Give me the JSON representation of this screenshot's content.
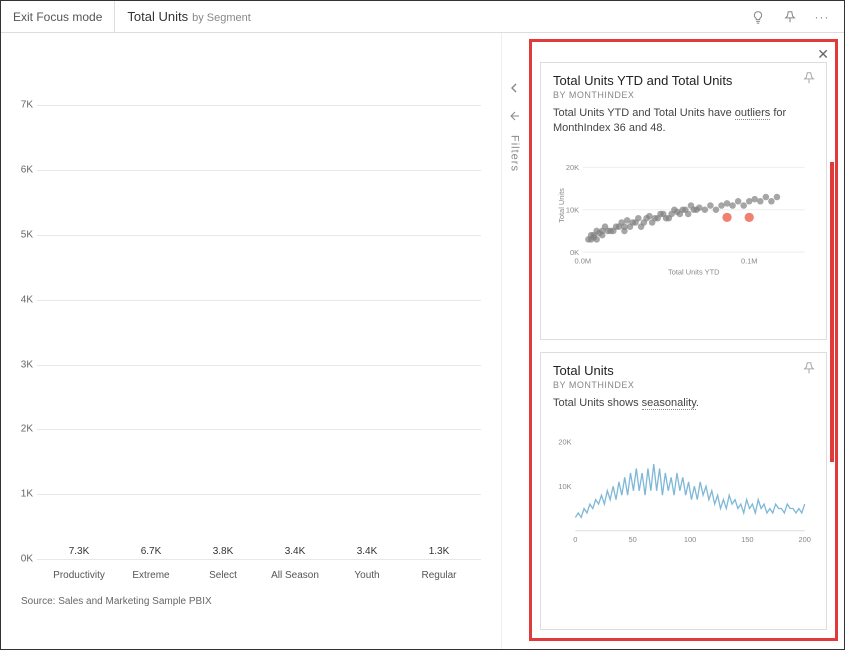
{
  "toolbar": {
    "exit_focus": "Exit Focus mode",
    "title_main": "Total Units",
    "title_sub": "by Segment"
  },
  "bar_chart": {
    "type": "bar",
    "ymax": 7500,
    "yticks": [
      0,
      1000,
      2000,
      3000,
      4000,
      5000,
      6000,
      7000
    ],
    "ytick_labels": [
      "0K",
      "1K",
      "2K",
      "3K",
      "4K",
      "5K",
      "6K",
      "7K"
    ],
    "categories": [
      "Productivity",
      "Extreme",
      "Select",
      "All Season",
      "Youth",
      "Regular"
    ],
    "values": [
      7300,
      6700,
      3800,
      3400,
      3400,
      1300
    ],
    "value_labels": [
      "7.3K",
      "6.7K",
      "3.8K",
      "3.4K",
      "3.4K",
      "1.3K"
    ],
    "bar_color": "#3b3bdc",
    "grid_color": "#e8e8e8",
    "axis_font_size": 10,
    "source": "Source: Sales and Marketing Sample PBIX"
  },
  "filters_label": "Filters",
  "insights": {
    "card1": {
      "title": "Total Units YTD and Total Units",
      "subtitle": "BY MONTHINDEX",
      "desc_pre": "Total Units YTD and Total Units have ",
      "desc_ul": "outliers",
      "desc_post": " for MonthIndex 36 and 48.",
      "scatter": {
        "type": "scatter",
        "xlabel": "Total Units YTD",
        "ylabel": "Total Units",
        "xticks": [
          "0.0M",
          "0.1M"
        ],
        "yticks": [
          "0K",
          "10K",
          "20K"
        ],
        "point_color": "#808080",
        "outlier_color": "#f08070",
        "label_color": "#888888",
        "label_fontsize": 8,
        "points": [
          [
            0.02,
            3
          ],
          [
            0.03,
            4
          ],
          [
            0.04,
            3.5
          ],
          [
            0.05,
            5
          ],
          [
            0.04,
            4
          ],
          [
            0.06,
            4.5
          ],
          [
            0.07,
            5
          ],
          [
            0.08,
            6
          ],
          [
            0.1,
            5
          ],
          [
            0.12,
            6
          ],
          [
            0.14,
            7
          ],
          [
            0.15,
            6
          ],
          [
            0.16,
            7.5
          ],
          [
            0.18,
            7
          ],
          [
            0.2,
            8
          ],
          [
            0.22,
            7
          ],
          [
            0.24,
            8.5
          ],
          [
            0.26,
            8
          ],
          [
            0.28,
            9
          ],
          [
            0.3,
            8
          ],
          [
            0.32,
            9
          ],
          [
            0.34,
            9.5
          ],
          [
            0.36,
            10
          ],
          [
            0.38,
            9
          ],
          [
            0.4,
            10
          ],
          [
            0.42,
            10.5
          ],
          [
            0.44,
            10
          ],
          [
            0.46,
            11
          ],
          [
            0.48,
            10
          ],
          [
            0.5,
            11
          ],
          [
            0.52,
            11.5
          ],
          [
            0.54,
            11
          ],
          [
            0.56,
            12
          ],
          [
            0.58,
            11
          ],
          [
            0.6,
            12
          ],
          [
            0.62,
            12.5
          ],
          [
            0.64,
            12
          ],
          [
            0.66,
            13
          ],
          [
            0.68,
            12
          ],
          [
            0.7,
            13
          ],
          [
            0.03,
            3
          ],
          [
            0.05,
            3
          ],
          [
            0.07,
            4
          ],
          [
            0.09,
            5
          ],
          [
            0.11,
            5
          ],
          [
            0.13,
            6
          ],
          [
            0.15,
            5
          ],
          [
            0.17,
            6
          ],
          [
            0.19,
            7
          ],
          [
            0.21,
            6
          ],
          [
            0.23,
            8
          ],
          [
            0.25,
            7
          ],
          [
            0.27,
            8
          ],
          [
            0.29,
            9
          ],
          [
            0.31,
            8
          ],
          [
            0.33,
            10
          ],
          [
            0.35,
            9
          ],
          [
            0.37,
            10
          ],
          [
            0.39,
            11
          ],
          [
            0.41,
            10
          ]
        ],
        "outliers": [
          [
            0.52,
            8.2
          ],
          [
            0.6,
            8.2
          ]
        ]
      }
    },
    "card2": {
      "title": "Total Units",
      "subtitle": "BY MONTHINDEX",
      "desc_pre": "Total Units shows ",
      "desc_ul": "seasonality",
      "desc_post": ".",
      "line": {
        "type": "line",
        "xticks": [
          "0",
          "50",
          "100",
          "150",
          "200"
        ],
        "yticks": [
          "10K",
          "20K"
        ],
        "line_color": "#7fb8d6",
        "label_color": "#888888",
        "label_fontsize": 8,
        "xmax": 200,
        "ymax": 22,
        "values": [
          3,
          4,
          3,
          5,
          4,
          6,
          5,
          7,
          6,
          8,
          6,
          9,
          7,
          10,
          7,
          11,
          8,
          12,
          8,
          13,
          9,
          14,
          9,
          13,
          8,
          14,
          9,
          15,
          9,
          14,
          8,
          13,
          9,
          12,
          8,
          13,
          9,
          12,
          8,
          11,
          7,
          10,
          7,
          11,
          8,
          10,
          7,
          9,
          6,
          8,
          5,
          7,
          5,
          8,
          6,
          7,
          5,
          6,
          4,
          7,
          5,
          6,
          4,
          7,
          5,
          6,
          4,
          5,
          4,
          6,
          5,
          5,
          4,
          6,
          5,
          5,
          4,
          5,
          4,
          6
        ]
      }
    }
  }
}
